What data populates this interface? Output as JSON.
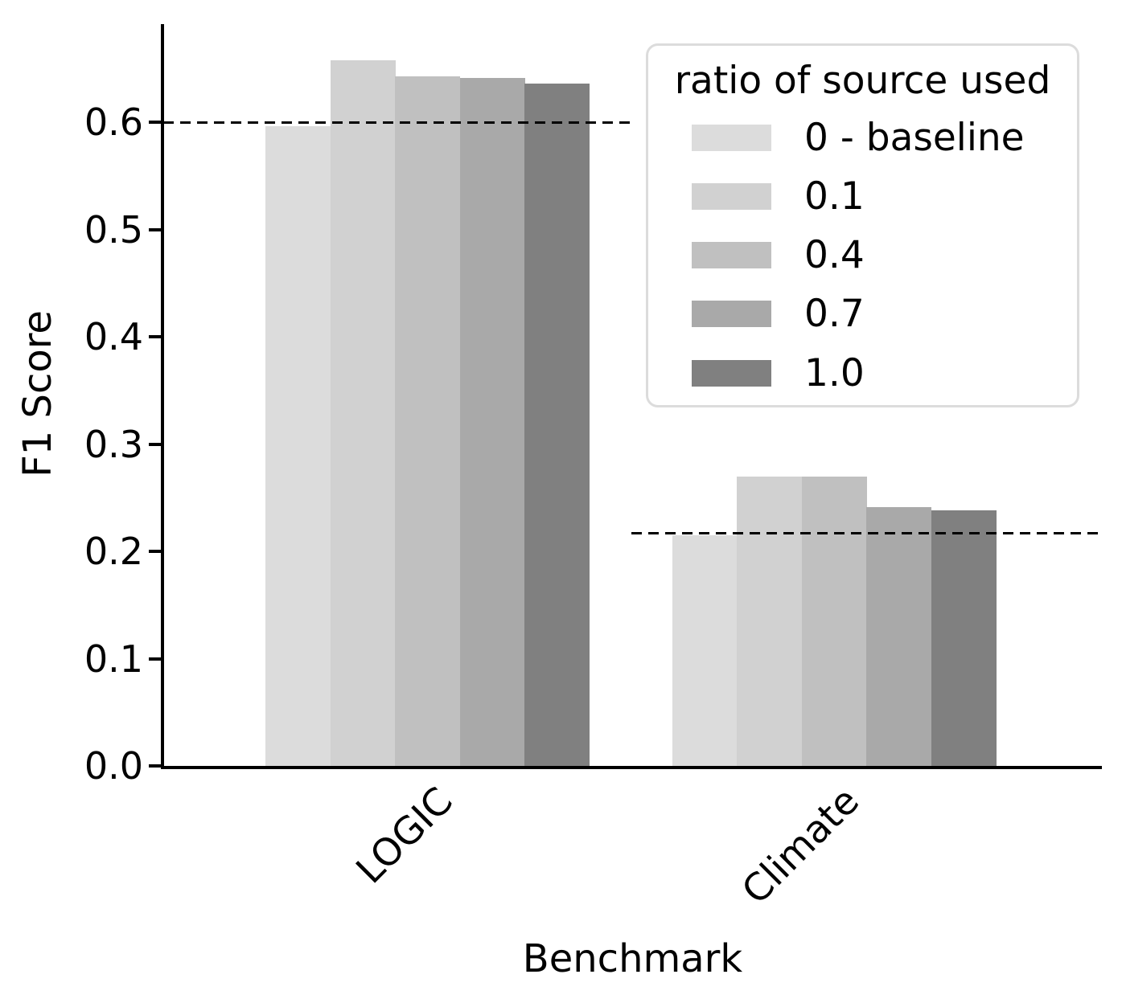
{
  "chart_data": {
    "type": "bar",
    "title": "",
    "xlabel": "Benchmark",
    "ylabel": "F1 Score",
    "categories": [
      "LOGIC",
      "Climate"
    ],
    "series": [
      {
        "name": "0 - baseline",
        "color": "#dcdcdc",
        "values": [
          0.596,
          0.215
        ]
      },
      {
        "name": "0.1",
        "color": "#d1d1d1",
        "values": [
          0.658,
          0.27
        ]
      },
      {
        "name": "0.4",
        "color": "#c0c0c0",
        "values": [
          0.643,
          0.27
        ]
      },
      {
        "name": "0.7",
        "color": "#a9a9a9",
        "values": [
          0.641,
          0.241
        ]
      },
      {
        "name": "1.0",
        "color": "#808080",
        "values": [
          0.636,
          0.238
        ]
      }
    ],
    "baseline_lines": [
      {
        "category": "LOGIC",
        "value": 0.6
      },
      {
        "category": "Climate",
        "value": 0.217
      }
    ],
    "legend": {
      "title": "ratio of source used",
      "position": "upper right"
    },
    "yticks": [
      0.0,
      0.1,
      0.2,
      0.3,
      0.4,
      0.5,
      0.6
    ],
    "ylim": [
      0,
      0.69
    ],
    "grid": false,
    "axis_color": "#000000",
    "dash_color": "#000000"
  }
}
